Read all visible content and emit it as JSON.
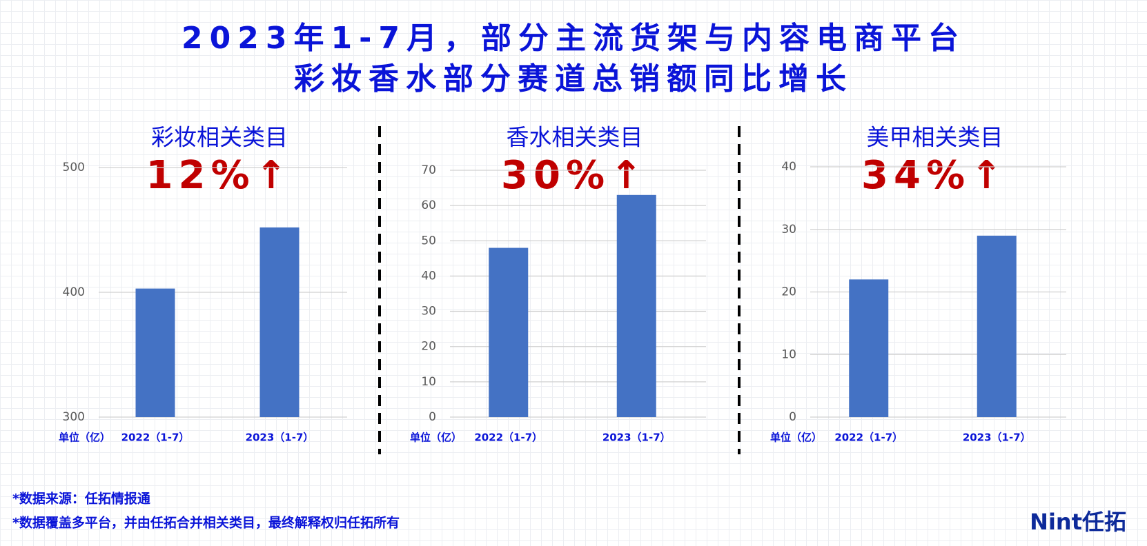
{
  "header": {
    "title": [
      "2023年1-7月，部分主流货架与内容电商平台",
      "彩妆香水部分赛道总销额同比增长"
    ]
  },
  "chart_data": [
    {
      "type": "bar",
      "title": "彩妆相关类目",
      "annotation": "12%↑",
      "y_label": "单位（亿）",
      "categories": [
        "2022（1-7）",
        "2023（1-7）"
      ],
      "values": [
        403,
        452
      ],
      "color": "#4472c4",
      "ylim": [
        300,
        500
      ],
      "yticks": [
        300,
        400,
        500
      ],
      "grid": true
    },
    {
      "type": "bar",
      "title": "香水相关类目",
      "annotation": "30%↑",
      "y_label": "单位（亿）",
      "categories": [
        "2022（1-7）",
        "2023（1-7）"
      ],
      "values": [
        48,
        63
      ],
      "color": "#4472c4",
      "ylim": [
        0,
        70
      ],
      "yticks": [
        0,
        10,
        20,
        30,
        40,
        50,
        60,
        70
      ],
      "grid": true
    },
    {
      "type": "bar",
      "title": "美甲相关类目",
      "annotation": "34%↑",
      "y_label": "单位（亿）",
      "categories": [
        "2022（1-7）",
        "2023（1-7）"
      ],
      "values": [
        22,
        29
      ],
      "color": "#4472c4",
      "ylim": [
        0,
        40
      ],
      "yticks": [
        0,
        10,
        20,
        30,
        40
      ],
      "grid": true
    }
  ],
  "footer": {
    "notes": [
      "*数据来源：任拓情报通",
      "*数据覆盖多平台，并由任拓合并相关类目，最终解释权归任拓所有"
    ],
    "logo": "Nint任拓"
  }
}
